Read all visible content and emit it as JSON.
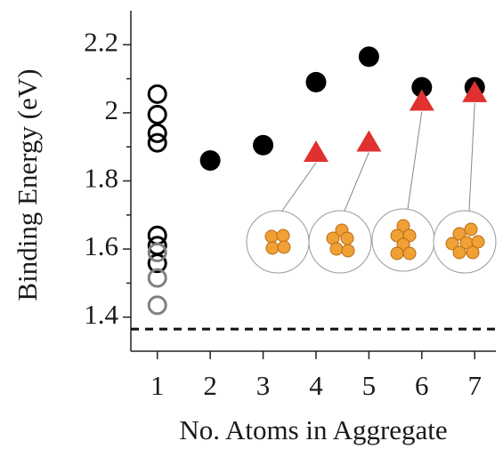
{
  "chart_data": {
    "type": "scatter",
    "xlabel": "No. Atoms in Aggregate",
    "ylabel": "Binding Energy (eV)",
    "xlim": [
      0.5,
      7.4
    ],
    "ylim": [
      1.3,
      2.3
    ],
    "xticks": [
      1,
      2,
      3,
      4,
      5,
      6,
      7
    ],
    "yticks": [
      1.4,
      1.6,
      1.8,
      2.0,
      2.2
    ],
    "yminorticks": [
      1.5,
      1.7,
      1.9,
      2.1
    ],
    "reference_line": 1.365,
    "series": [
      {
        "marker": "open-circle",
        "color": "#000000",
        "x": [
          1,
          1,
          1,
          1,
          1,
          1,
          1
        ],
        "values": [
          2.055,
          1.995,
          1.94,
          1.912,
          1.64,
          1.61,
          1.558
        ]
      },
      {
        "marker": "open-circle",
        "color": "#808080",
        "x": [
          1,
          1,
          1
        ],
        "values": [
          1.59,
          1.515,
          1.435
        ]
      },
      {
        "marker": "filled-circle",
        "color": "#000000",
        "x": [
          2,
          3,
          4,
          5,
          6,
          7
        ],
        "values": [
          1.86,
          1.905,
          2.09,
          2.165,
          2.075,
          2.075
        ]
      },
      {
        "marker": "triangle",
        "color": "#e03030",
        "x": [
          4,
          5,
          6,
          7
        ],
        "values": [
          1.885,
          1.915,
          2.035,
          2.06
        ]
      }
    ]
  }
}
